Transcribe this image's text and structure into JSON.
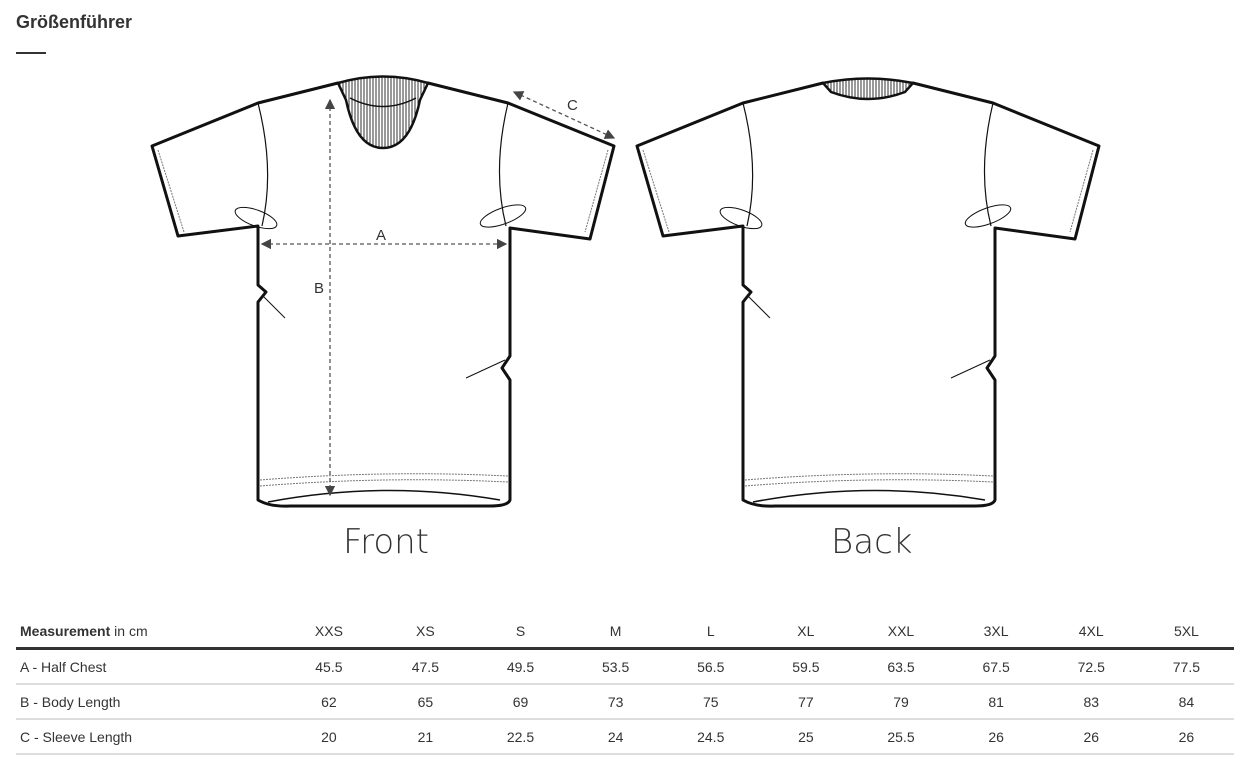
{
  "title": "Größenführer",
  "diagram": {
    "front_label": "Front",
    "back_label": "Back",
    "markers": {
      "a": "A",
      "b": "B",
      "c": "C"
    }
  },
  "table": {
    "header_bold": "Measurement",
    "header_unit": " in cm",
    "sizes": [
      "XXS",
      "XS",
      "S",
      "M",
      "L",
      "XL",
      "XXL",
      "3XL",
      "4XL",
      "5XL"
    ],
    "rows": [
      {
        "label": "A - Half Chest",
        "values": [
          "45.5",
          "47.5",
          "49.5",
          "53.5",
          "56.5",
          "59.5",
          "63.5",
          "67.5",
          "72.5",
          "77.5"
        ]
      },
      {
        "label": "B - Body Length",
        "values": [
          "62",
          "65",
          "69",
          "73",
          "75",
          "77",
          "79",
          "81",
          "83",
          "84"
        ]
      },
      {
        "label": "C - Sleeve Length",
        "values": [
          "20",
          "21",
          "22.5",
          "24",
          "24.5",
          "25",
          "25.5",
          "26",
          "26",
          "26"
        ]
      }
    ]
  }
}
